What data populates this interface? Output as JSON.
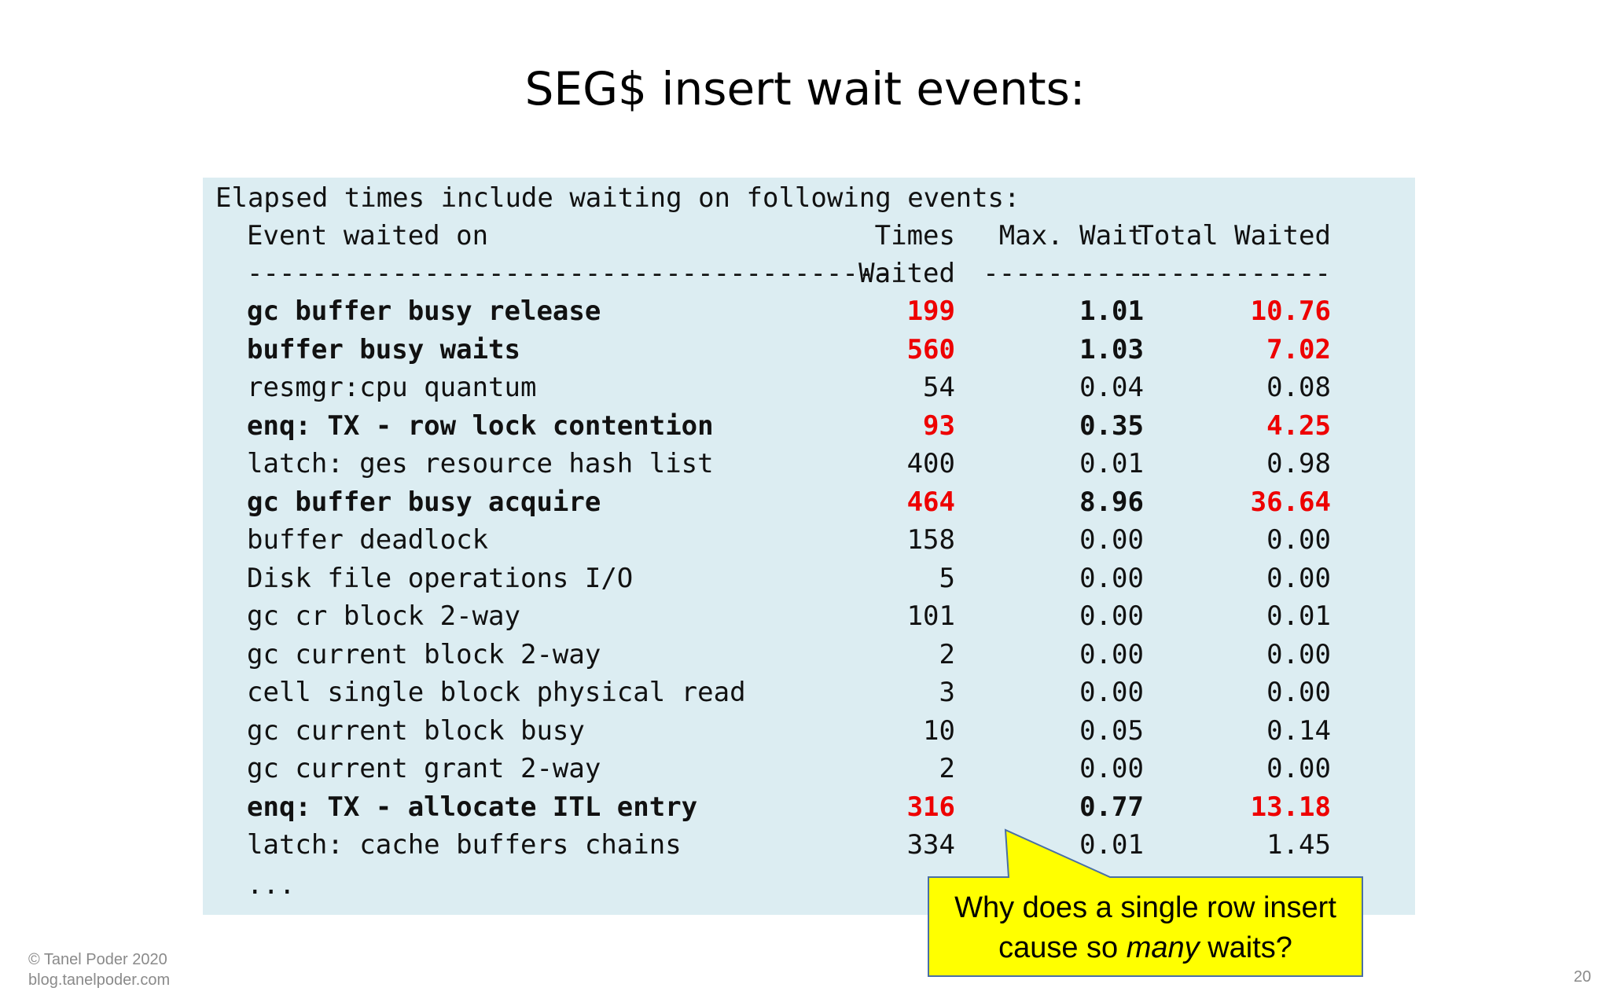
{
  "slide": {
    "title": "SEG$ insert wait events:",
    "page_number": "20"
  },
  "footer": {
    "copyright": "© Tanel Poder 2020",
    "site": "blog.tanelpoder.com"
  },
  "report": {
    "intro": "Elapsed times include waiting on following events:",
    "header_row1": {
      "event": "Event waited on",
      "times": "Times",
      "max_wait": "Max. Wait",
      "total_waited": "Total Waited"
    },
    "header_row2": {
      "event": "----------------------------------------",
      "times": "Waited",
      "max_wait": "----------",
      "total_waited": "------------"
    },
    "rows": [
      {
        "event": "gc buffer busy release",
        "times": "199",
        "max_wait": "1.01",
        "total": "10.76",
        "highlight": true
      },
      {
        "event": "buffer busy waits",
        "times": "560",
        "max_wait": "1.03",
        "total": "7.02",
        "highlight": true
      },
      {
        "event": "resmgr:cpu quantum",
        "times": "54",
        "max_wait": "0.04",
        "total": "0.08",
        "highlight": false
      },
      {
        "event": "enq: TX - row lock contention",
        "times": "93",
        "max_wait": "0.35",
        "total": "4.25",
        "highlight": true
      },
      {
        "event": "latch: ges resource hash list",
        "times": "400",
        "max_wait": "0.01",
        "total": "0.98",
        "highlight": false
      },
      {
        "event": "gc buffer busy acquire",
        "times": "464",
        "max_wait": "8.96",
        "total": "36.64",
        "highlight": true
      },
      {
        "event": "buffer deadlock",
        "times": "158",
        "max_wait": "0.00",
        "total": "0.00",
        "highlight": false
      },
      {
        "event": "Disk file operations I/O",
        "times": "5",
        "max_wait": "0.00",
        "total": "0.00",
        "highlight": false
      },
      {
        "event": "gc cr block 2-way",
        "times": "101",
        "max_wait": "0.00",
        "total": "0.01",
        "highlight": false
      },
      {
        "event": "gc current block 2-way",
        "times": "2",
        "max_wait": "0.00",
        "total": "0.00",
        "highlight": false
      },
      {
        "event": "cell single block physical read",
        "times": "3",
        "max_wait": "0.00",
        "total": "0.00",
        "highlight": false
      },
      {
        "event": "gc current block busy",
        "times": "10",
        "max_wait": "0.05",
        "total": "0.14",
        "highlight": false
      },
      {
        "event": "gc current grant 2-way",
        "times": "2",
        "max_wait": "0.00",
        "total": "0.00",
        "highlight": false
      },
      {
        "event": "enq: TX - allocate ITL entry",
        "times": "316",
        "max_wait": "0.77",
        "total": "13.18",
        "highlight": true
      },
      {
        "event": "latch: cache buffers chains",
        "times": "334",
        "max_wait": "0.01",
        "total": "1.45",
        "highlight": false
      }
    ],
    "ellipsis": "..."
  },
  "callout": {
    "line1": "Why does a single row insert",
    "line2_pre": "cause so ",
    "line2_em": "many",
    "line2_post": " waits?",
    "fill_color": "#ffff00",
    "border_color": "#4a6fa5"
  },
  "colors": {
    "panel_bg": "#dcedf2",
    "highlight_red": "#ee0000"
  }
}
